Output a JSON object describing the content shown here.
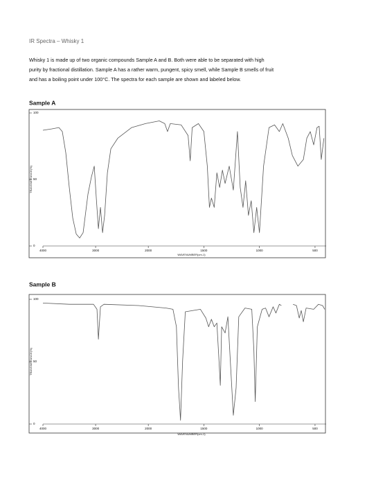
{
  "header": {
    "title": "IR Spectra – Whisky 1"
  },
  "paragraph": [
    "Whisky 1 is made up of two organic compounds Sample A and B. Both were able to be separated with high",
    "purity by fractional distillation. Sample A has a rather warm, pungent, spicy smell, while Sample B smells of fruit",
    "and has a boiling point under 100°C. The spectra for each sample are shown and labeled below."
  ],
  "chart_data": [
    {
      "type": "line",
      "title": "Sample A",
      "xlabel": "WAVENUMBER(cm-1)",
      "ylabel": "TRANSMITTANCE(%)",
      "xlim": [
        4000,
        400
      ],
      "xbreak": 2000,
      "xticks": [
        4000,
        3000,
        2000,
        1500,
        1000,
        500
      ],
      "ylim": [
        0,
        100
      ],
      "yticks": [
        0,
        50,
        100
      ],
      "x": [
        4000,
        3829,
        3697,
        3632,
        3566,
        3500,
        3434,
        3368,
        3303,
        3237,
        3145,
        3079,
        3026,
        2987,
        2947,
        2908,
        2868,
        2829,
        2776,
        2711,
        2579,
        2316,
        2053,
        1901,
        1852,
        1827,
        1802,
        1704,
        1642,
        1623,
        1605,
        1549,
        1500,
        1469,
        1450,
        1432,
        1407,
        1383,
        1358,
        1333,
        1309,
        1272,
        1235,
        1198,
        1173,
        1148,
        1124,
        1099,
        1074,
        1050,
        1025,
        1000,
        963,
        914,
        864,
        821,
        790,
        741,
        704,
        654,
        605,
        574,
        543,
        512,
        482,
        463,
        444,
        420
      ],
      "series": [
        {
          "color": "#555555",
          "values": [
            87,
            88,
            89,
            86,
            70,
            44,
            21,
            9,
            6,
            10,
            39,
            52,
            60,
            36,
            13,
            29,
            10,
            23,
            55,
            73,
            81,
            89,
            92,
            94,
            92,
            86,
            92,
            91,
            83,
            64,
            89,
            92,
            86,
            60,
            29,
            36,
            29,
            55,
            44,
            57,
            47,
            60,
            42,
            86,
            44,
            29,
            49,
            23,
            34,
            10,
            29,
            10,
            60,
            89,
            91,
            86,
            92,
            81,
            68,
            60,
            65,
            81,
            86,
            76,
            89,
            90,
            65,
            81
          ]
        }
      ]
    },
    {
      "type": "line",
      "title": "Sample B",
      "xlabel": "WAVENUMBER(cm-1)",
      "ylabel": "TRANSMITTANCE(%)",
      "xlim": [
        4000,
        400
      ],
      "xbreak": 2000,
      "xticks": [
        4000,
        3000,
        2000,
        1500,
        1000,
        500
      ],
      "ylim": [
        0,
        100
      ],
      "yticks": [
        0,
        50,
        100
      ],
      "x": [
        4000,
        3500,
        3040,
        2974,
        2947,
        2908,
        2842,
        2184,
        1840,
        1778,
        1747,
        1728,
        1710,
        1691,
        1667,
        1531,
        1482,
        1457,
        1432,
        1407,
        1383,
        1364,
        1352,
        1340,
        1309,
        1284,
        1235,
        1210,
        1186,
        1130,
        1069,
        1050,
        1038,
        1019,
        976,
        945,
        914,
        877,
        852,
        821,
        803,
        750,
        698,
        667,
        642,
        624,
        605,
        580,
        512,
        469,
        432,
        413
      ],
      "series": [
        {
          "color": "#555555",
          "values": [
            97,
            96,
            96,
            92,
            68,
            94,
            96,
            95,
            93,
            92,
            78,
            29,
            3,
            51,
            90,
            92,
            85,
            78,
            84,
            78,
            81,
            51,
            31,
            78,
            73,
            86,
            7,
            29,
            86,
            93,
            92,
            59,
            18,
            78,
            92,
            93,
            86,
            94,
            89,
            96,
            95,
            null,
            96,
            95,
            85,
            91,
            82,
            93,
            92,
            96,
            95,
            92
          ]
        }
      ]
    }
  ]
}
